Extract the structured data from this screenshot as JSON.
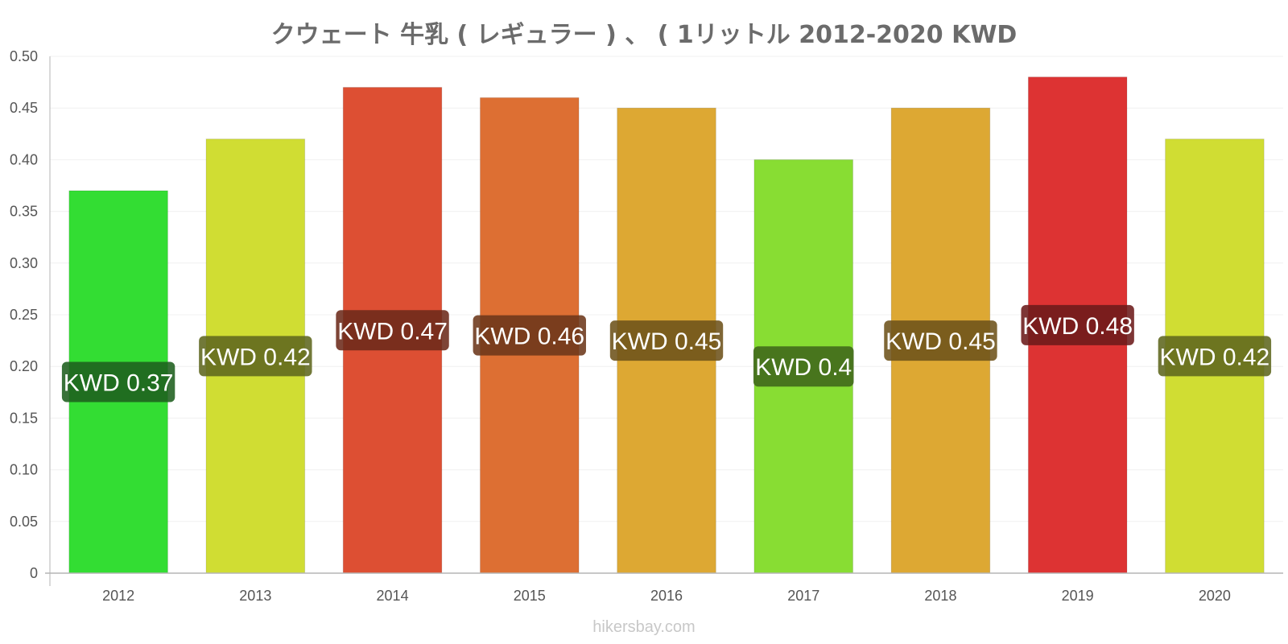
{
  "chart_data": {
    "type": "bar",
    "title": "クウェート 牛乳 ( レギュラー ) 、 ( 1リットル 2012-2020 KWD",
    "categories": [
      "2012",
      "2013",
      "2014",
      "2015",
      "2016",
      "2017",
      "2018",
      "2019",
      "2020"
    ],
    "values": [
      0.37,
      0.42,
      0.47,
      0.46,
      0.45,
      0.4,
      0.45,
      0.48,
      0.42
    ],
    "data_labels": [
      "KWD 0.37",
      "KWD 0.42",
      "KWD 0.47",
      "KWD 0.46",
      "KWD 0.45",
      "KWD 0.4",
      "KWD 0.45",
      "KWD 0.48",
      "KWD 0.42"
    ],
    "bar_colors": [
      "#33dd33",
      "#d0dd33",
      "#dd4f33",
      "#dd6f33",
      "#dda833",
      "#88dd33",
      "#dda833",
      "#dd3333",
      "#d0dd33"
    ],
    "label_bg_colors": [
      "#1e5e1e",
      "#5f661e",
      "#6c2a1a",
      "#6c371a",
      "#6d521a",
      "#3f661a",
      "#6d521a",
      "#6c1a1a",
      "#5f661e"
    ],
    "yticks": [
      "0",
      "0.05",
      "0.10",
      "0.15",
      "0.20",
      "0.25",
      "0.30",
      "0.35",
      "0.40",
      "0.45",
      "0.50"
    ],
    "ylim": [
      0,
      0.5
    ],
    "xlabel": "",
    "ylabel": "",
    "grid": true,
    "legend": "none"
  },
  "watermark": "hikersbay.com"
}
